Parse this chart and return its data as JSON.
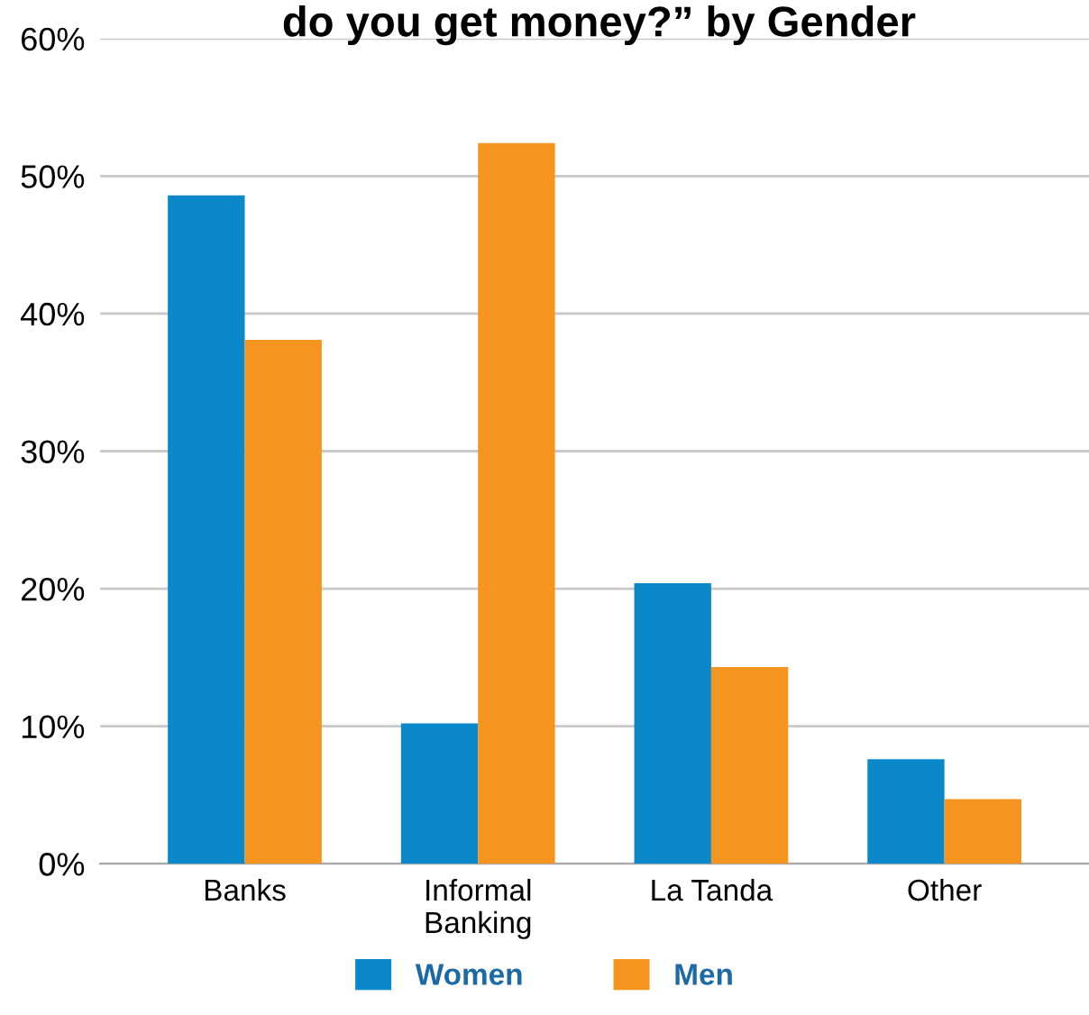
{
  "chart_data": {
    "type": "bar",
    "title": "do you get money?” by Gender",
    "categories": [
      "Banks",
      "Informal\nBanking",
      "La Tanda",
      "Other"
    ],
    "series": [
      {
        "name": "Women",
        "color": "#0a88c9",
        "values": [
          48.6,
          10.2,
          20.4,
          7.6
        ]
      },
      {
        "name": "Men",
        "color": "#f5941f",
        "values": [
          38.1,
          52.4,
          14.3,
          4.7
        ]
      }
    ],
    "ylim": [
      0,
      60
    ],
    "yticks": [
      {
        "value": 0,
        "label": "0%"
      },
      {
        "value": 10,
        "label": "10%"
      },
      {
        "value": 20,
        "label": "20%"
      },
      {
        "value": 30,
        "label": "30%"
      },
      {
        "value": 40,
        "label": "40%"
      },
      {
        "value": 50,
        "label": "50%"
      },
      {
        "value": 60,
        "label": "60%"
      }
    ],
    "grid": "y",
    "legend": "bottom"
  }
}
